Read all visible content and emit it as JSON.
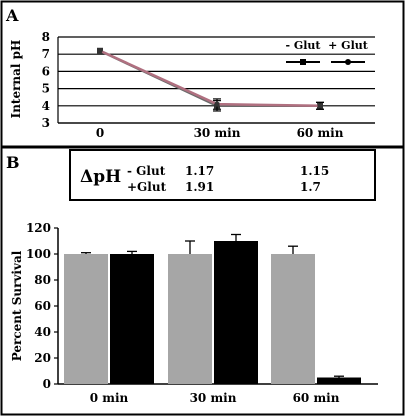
{
  "panel_a": {
    "letter": "A",
    "legend": [
      {
        "label": "- Glut",
        "marker": "square"
      },
      {
        "label": "+ Glut",
        "marker": "circle"
      }
    ]
  },
  "panel_b": {
    "letter": "B",
    "delta_table": {
      "symbol": "ΔpH",
      "rows": [
        {
          "label": "- Glut",
          "values": [
            "1.17",
            "1.15"
          ]
        },
        {
          "label": "+Glut",
          "values": [
            "1.91",
            "1.7"
          ]
        }
      ]
    }
  },
  "colors": {
    "line_minus_glut": "#6a6a6a",
    "line_plus_glut": "#b07080",
    "bar_minus_glut": "#a6a6a6",
    "bar_plus_glut": "#000000"
  },
  "chart_data": [
    {
      "type": "line",
      "title": "",
      "xlabel": "",
      "ylabel": "Internal pH",
      "categories": [
        "0",
        "30 min",
        "60 min"
      ],
      "ylim": [
        3,
        8
      ],
      "yticks": [
        3,
        4,
        5,
        6,
        7,
        8
      ],
      "grid": true,
      "legend_position": "top-right",
      "series": [
        {
          "name": "- Glut",
          "values": [
            7.2,
            4.0,
            4.0
          ],
          "errors": [
            0,
            0.3,
            0.2
          ]
        },
        {
          "name": "+ Glut",
          "values": [
            7.2,
            4.1,
            4.0
          ],
          "errors": [
            0,
            0.3,
            0.2
          ]
        }
      ]
    },
    {
      "type": "bar",
      "title": "",
      "xlabel": "",
      "ylabel": "Percent Survival",
      "categories": [
        "0 min",
        "30 min",
        "60 min"
      ],
      "ylim": [
        0,
        120
      ],
      "yticks": [
        0,
        20,
        40,
        60,
        80,
        100,
        120
      ],
      "grid": false,
      "series": [
        {
          "name": "- Glut",
          "values": [
            100,
            100,
            100
          ],
          "errors": [
            1,
            10,
            6
          ]
        },
        {
          "name": "+ Glut",
          "values": [
            100,
            110,
            5
          ],
          "errors": [
            2,
            5,
            1
          ]
        }
      ]
    }
  ]
}
